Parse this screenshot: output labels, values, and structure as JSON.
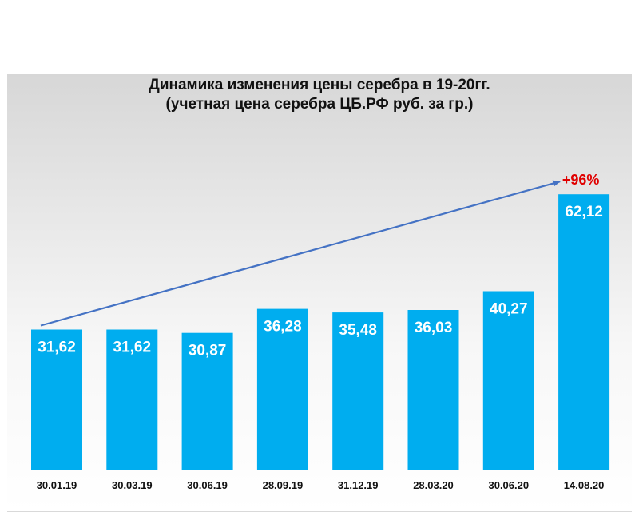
{
  "chart_data": {
    "type": "bar",
    "title": "Динамика изменения цены серебра в 19-20гг.",
    "subtitle": "(учетная цена серебра  ЦБ.РФ руб. за гр.)",
    "categories": [
      "30.01.19",
      "30.03.19",
      "30.06.19",
      "28.09.19",
      "31.12.19",
      "28.03.20",
      "30.06.20",
      "14.08.20"
    ],
    "values": [
      31.62,
      31.62,
      30.87,
      36.28,
      35.48,
      36.03,
      40.27,
      62.12
    ],
    "value_labels": [
      "31,62",
      "31,62",
      "30,87",
      "36,28",
      "35,48",
      "36,03",
      "40,27",
      "62,12"
    ],
    "xlabel": "",
    "ylabel": "",
    "grid": false,
    "legend": "none",
    "annotation": {
      "text": "+96%",
      "type": "trend-arrow",
      "from_category": "30.01.19",
      "to_category": "14.08.20"
    },
    "colors": {
      "bar": "#00adef",
      "bar_label": "#ffffff",
      "arrow": "#4472c4",
      "annotation": "#e00000",
      "text": "#111111"
    }
  }
}
